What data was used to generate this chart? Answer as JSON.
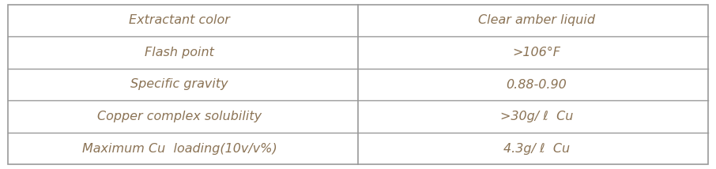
{
  "rows": [
    [
      "Extractant color",
      "Clear amber liquid"
    ],
    [
      "Flash point",
      ">106°F"
    ],
    [
      "Specific gravity",
      "0.88-0.90"
    ],
    [
      "Copper complex solubility",
      ">30g/ ℓ  Cu"
    ],
    [
      "Maximum Cu  loading(10v/v%)",
      "4.3g/ ℓ  Cu"
    ]
  ],
  "text_color": "#8B7355",
  "border_color": "#999999",
  "bg_color": "#ffffff",
  "font_size": 11.5,
  "fig_width": 9.06,
  "fig_height": 2.14
}
